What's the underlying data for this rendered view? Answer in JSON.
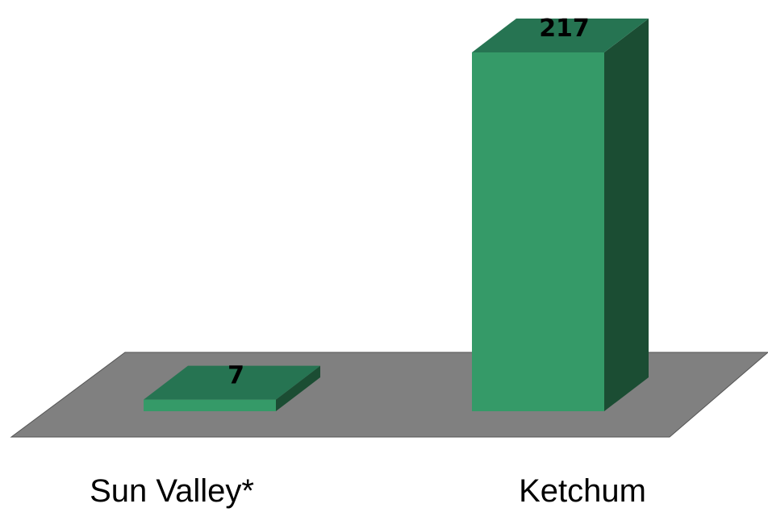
{
  "chart_data": {
    "type": "bar",
    "categories": [
      "Sun Valley*",
      "Ketchum"
    ],
    "values": [
      7,
      217
    ],
    "title": "",
    "xlabel": "",
    "ylabel": "",
    "ylim": [
      0,
      217
    ],
    "grid": false,
    "legend": "none",
    "style": "3d"
  },
  "colors": {
    "bar_front": "#359A68",
    "bar_top": "#267452",
    "bar_side": "#1B4D33",
    "floor": "#808080"
  }
}
